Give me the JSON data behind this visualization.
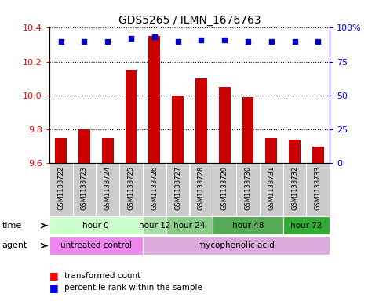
{
  "title": "GDS5265 / ILMN_1676763",
  "samples": [
    "GSM1133722",
    "GSM1133723",
    "GSM1133724",
    "GSM1133725",
    "GSM1133726",
    "GSM1133727",
    "GSM1133728",
    "GSM1133729",
    "GSM1133730",
    "GSM1133731",
    "GSM1133732",
    "GSM1133733"
  ],
  "transformed_counts": [
    9.75,
    9.8,
    9.75,
    10.15,
    10.35,
    10.0,
    10.1,
    10.05,
    9.99,
    9.75,
    9.74,
    9.7
  ],
  "percentile_ranks": [
    90,
    90,
    90,
    92,
    93,
    90,
    91,
    91,
    90,
    90,
    90,
    90
  ],
  "ylim_left": [
    9.6,
    10.4
  ],
  "ylim_right": [
    0,
    100
  ],
  "yticks_left": [
    9.6,
    9.8,
    10.0,
    10.2,
    10.4
  ],
  "yticks_right": [
    0,
    25,
    50,
    75,
    100
  ],
  "bar_color": "#cc0000",
  "dot_color": "#0000cc",
  "bar_bottom": 9.6,
  "time_groups": [
    {
      "label": "hour 0",
      "start": 0,
      "end": 3,
      "color": "#ccffcc"
    },
    {
      "label": "hour 12",
      "start": 4,
      "end": 4,
      "color": "#aaddaa"
    },
    {
      "label": "hour 24",
      "start": 5,
      "end": 6,
      "color": "#88cc88"
    },
    {
      "label": "hour 48",
      "start": 7,
      "end": 9,
      "color": "#55aa55"
    },
    {
      "label": "hour 72",
      "start": 10,
      "end": 11,
      "color": "#33aa33"
    }
  ],
  "agent_groups": [
    {
      "label": "untreated control",
      "start": 0,
      "end": 3,
      "color": "#ee88ee"
    },
    {
      "label": "mycophenolic acid",
      "start": 4,
      "end": 11,
      "color": "#ddaadd"
    }
  ],
  "legend_bar_label": "transformed count",
  "legend_dot_label": "percentile rank within the sample",
  "time_label": "time",
  "agent_label": "agent",
  "sample_box_color": "#cccccc",
  "fig_bg": "#ffffff"
}
